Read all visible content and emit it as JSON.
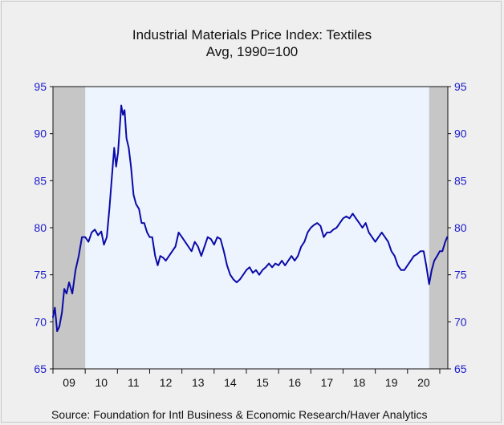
{
  "chart_data": {
    "type": "line",
    "title": "Industrial Materials Price Index: Textiles",
    "subtitle": "Avg, 1990=100",
    "source": "Source:  Foundation for Intl Business & Economic Research/Haver Analytics",
    "ylim": [
      65,
      95
    ],
    "yticks": [
      65,
      70,
      75,
      80,
      85,
      90,
      95
    ],
    "xlim": [
      2008.5,
      2020.75
    ],
    "xtick_labels": [
      "09",
      "10",
      "11",
      "12",
      "13",
      "14",
      "15",
      "16",
      "17",
      "18",
      "19",
      "20"
    ],
    "recession_bands": [
      [
        2008.5,
        2009.5
      ],
      [
        2020.17,
        2020.75
      ]
    ],
    "colors": {
      "line": "#0a0aa8",
      "axis_text": "#1a1acc",
      "plot_bg": "#eef4fe",
      "recession": "#c6c6c6"
    },
    "series": [
      {
        "values": [
          [
            2008.5,
            70.5
          ],
          [
            2008.56,
            71.5
          ],
          [
            2008.63,
            69
          ],
          [
            2008.7,
            69.5
          ],
          [
            2008.78,
            71
          ],
          [
            2008.85,
            73.5
          ],
          [
            2008.92,
            73
          ],
          [
            2009.0,
            74.2
          ],
          [
            2009.1,
            73
          ],
          [
            2009.2,
            75.5
          ],
          [
            2009.3,
            77
          ],
          [
            2009.4,
            79
          ],
          [
            2009.5,
            79
          ],
          [
            2009.6,
            78.5
          ],
          [
            2009.7,
            79.5
          ],
          [
            2009.8,
            79.8
          ],
          [
            2009.9,
            79.2
          ],
          [
            2010.0,
            79.6
          ],
          [
            2010.08,
            78.2
          ],
          [
            2010.17,
            79
          ],
          [
            2010.25,
            82
          ],
          [
            2010.33,
            85.5
          ],
          [
            2010.4,
            88.5
          ],
          [
            2010.46,
            86.5
          ],
          [
            2010.52,
            88
          ],
          [
            2010.58,
            91
          ],
          [
            2010.62,
            93
          ],
          [
            2010.67,
            92
          ],
          [
            2010.72,
            92.5
          ],
          [
            2010.78,
            89.5
          ],
          [
            2010.85,
            88.5
          ],
          [
            2010.92,
            86.5
          ],
          [
            2011.0,
            83.5
          ],
          [
            2011.08,
            82.5
          ],
          [
            2011.17,
            82
          ],
          [
            2011.25,
            80.5
          ],
          [
            2011.33,
            80.5
          ],
          [
            2011.42,
            79.5
          ],
          [
            2011.5,
            79
          ],
          [
            2011.58,
            79
          ],
          [
            2011.67,
            77
          ],
          [
            2011.75,
            76
          ],
          [
            2011.83,
            77
          ],
          [
            2011.92,
            76.8
          ],
          [
            2012.0,
            76.5
          ],
          [
            2012.1,
            77
          ],
          [
            2012.2,
            77.5
          ],
          [
            2012.3,
            78
          ],
          [
            2012.4,
            79.5
          ],
          [
            2012.5,
            79
          ],
          [
            2012.6,
            78.5
          ],
          [
            2012.7,
            78
          ],
          [
            2012.8,
            77.5
          ],
          [
            2012.9,
            78.5
          ],
          [
            2013.0,
            78
          ],
          [
            2013.1,
            77
          ],
          [
            2013.2,
            78
          ],
          [
            2013.3,
            79
          ],
          [
            2013.4,
            78.8
          ],
          [
            2013.5,
            78.2
          ],
          [
            2013.6,
            79
          ],
          [
            2013.7,
            78.8
          ],
          [
            2013.8,
            77.5
          ],
          [
            2013.9,
            76
          ],
          [
            2014.0,
            75
          ],
          [
            2014.1,
            74.5
          ],
          [
            2014.2,
            74.2
          ],
          [
            2014.3,
            74.5
          ],
          [
            2014.4,
            75
          ],
          [
            2014.5,
            75.5
          ],
          [
            2014.6,
            75.8
          ],
          [
            2014.7,
            75.2
          ],
          [
            2014.8,
            75.5
          ],
          [
            2014.9,
            75
          ],
          [
            2015.0,
            75.5
          ],
          [
            2015.1,
            75.8
          ],
          [
            2015.2,
            76.2
          ],
          [
            2015.3,
            75.8
          ],
          [
            2015.4,
            76.2
          ],
          [
            2015.5,
            76
          ],
          [
            2015.6,
            76.5
          ],
          [
            2015.7,
            76
          ],
          [
            2015.8,
            76.5
          ],
          [
            2015.9,
            77
          ],
          [
            2016.0,
            76.5
          ],
          [
            2016.1,
            77
          ],
          [
            2016.2,
            78
          ],
          [
            2016.3,
            78.5
          ],
          [
            2016.4,
            79.5
          ],
          [
            2016.5,
            80
          ],
          [
            2016.6,
            80.3
          ],
          [
            2016.7,
            80.5
          ],
          [
            2016.8,
            80.2
          ],
          [
            2016.9,
            79
          ],
          [
            2017.0,
            79.5
          ],
          [
            2017.1,
            79.5
          ],
          [
            2017.2,
            79.8
          ],
          [
            2017.3,
            80
          ],
          [
            2017.4,
            80.5
          ],
          [
            2017.5,
            81
          ],
          [
            2017.6,
            81.2
          ],
          [
            2017.7,
            81
          ],
          [
            2017.8,
            81.5
          ],
          [
            2017.9,
            81
          ],
          [
            2018.0,
            80.5
          ],
          [
            2018.1,
            80
          ],
          [
            2018.2,
            80.5
          ],
          [
            2018.3,
            79.5
          ],
          [
            2018.4,
            79
          ],
          [
            2018.5,
            78.5
          ],
          [
            2018.6,
            79
          ],
          [
            2018.7,
            79.5
          ],
          [
            2018.8,
            79
          ],
          [
            2018.9,
            78.5
          ],
          [
            2019.0,
            77.5
          ],
          [
            2019.1,
            77
          ],
          [
            2019.2,
            76
          ],
          [
            2019.3,
            75.5
          ],
          [
            2019.4,
            75.5
          ],
          [
            2019.5,
            76
          ],
          [
            2019.6,
            76.5
          ],
          [
            2019.7,
            77
          ],
          [
            2019.8,
            77.2
          ],
          [
            2019.9,
            77.5
          ],
          [
            2020.0,
            77.5
          ],
          [
            2020.08,
            76
          ],
          [
            2020.17,
            74
          ],
          [
            2020.25,
            75.5
          ],
          [
            2020.33,
            76.5
          ],
          [
            2020.42,
            77
          ],
          [
            2020.5,
            77.5
          ],
          [
            2020.58,
            77.5
          ],
          [
            2020.67,
            78.5
          ],
          [
            2020.73,
            79
          ]
        ]
      }
    ]
  }
}
